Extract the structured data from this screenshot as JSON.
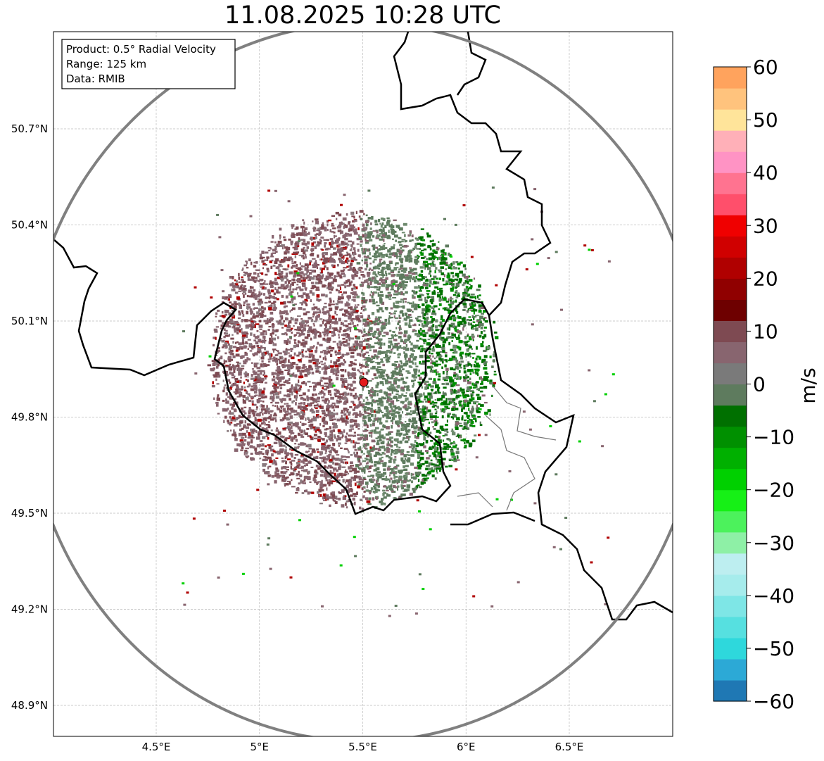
{
  "title": "11.08.2025 10:28 UTC",
  "info_box": {
    "line1": "Product: 0.5° Radial Velocity",
    "line2": "Range: 125 km",
    "line3": "Data: RMIB"
  },
  "map": {
    "lat_ticks": [
      "50.7°N",
      "50.4°N",
      "50.1°N",
      "49.8°N",
      "49.5°N",
      "49.2°N",
      "48.9°N"
    ],
    "lon_ticks": [
      "4.5°E",
      "5°E",
      "5.5°E",
      "6°E",
      "6.5°E"
    ],
    "radar_site": {
      "lon": 5.5,
      "lat": 49.91
    },
    "radar_marker_color": "#e31a1c",
    "range_ring_color": "#808080",
    "border_color": "#000000"
  },
  "colorbar": {
    "label": "m/s",
    "ticks": [
      "60",
      "50",
      "40",
      "30",
      "20",
      "10",
      "0",
      "−10",
      "−20",
      "−30",
      "−40",
      "−50",
      "−60"
    ],
    "vmin": -60,
    "vmax": 60,
    "colors": [
      "#1f78b4",
      "#2ca9d6",
      "#2ed8dc",
      "#56e0e0",
      "#7ee6e6",
      "#a6ecec",
      "#bdeef0",
      "#8ef0a6",
      "#4cf25c",
      "#16f016",
      "#00d000",
      "#00b000",
      "#009000",
      "#007000",
      "#5e7b5e",
      "#7a7a7a",
      "#88656f",
      "#7e4a52",
      "#6e0000",
      "#900000",
      "#b00000",
      "#d00000",
      "#f00000",
      "#ff4f6b",
      "#ff7390",
      "#ff93c4",
      "#ffb0b8",
      "#ffe49a",
      "#ffc37d",
      "#ffa35d"
    ]
  }
}
